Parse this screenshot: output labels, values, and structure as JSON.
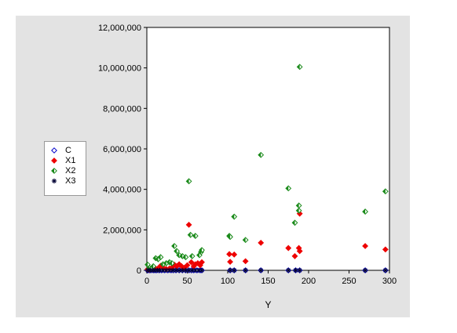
{
  "chart_data": {
    "type": "scatter",
    "xlabel": "Y",
    "ylabel": "",
    "xlim": [
      0,
      300
    ],
    "ylim": [
      0,
      12000000
    ],
    "x_ticks": [
      "0",
      "50",
      "100",
      "150",
      "200",
      "250",
      "300"
    ],
    "y_ticks": [
      "0",
      "2,000,000",
      "4,000,000",
      "6,000,000",
      "8,000,000",
      "10,000,000",
      "12,000,000"
    ],
    "grid": false,
    "legend_position": "left",
    "series": [
      {
        "name": "C",
        "marker": "open-diamond",
        "color": "#0000cc",
        "points": [
          [
            1,
            0
          ],
          [
            3,
            0
          ],
          [
            5,
            0
          ],
          [
            8,
            0
          ],
          [
            10,
            0
          ],
          [
            12,
            0
          ],
          [
            15,
            0
          ],
          [
            18,
            0
          ],
          [
            22,
            0
          ],
          [
            26,
            0
          ],
          [
            30,
            0
          ],
          [
            33,
            0
          ],
          [
            36,
            0
          ],
          [
            40,
            0
          ],
          [
            44,
            0
          ],
          [
            48,
            0
          ],
          [
            52,
            0
          ],
          [
            55,
            0
          ],
          [
            58,
            0
          ],
          [
            62,
            0
          ],
          [
            66,
            0
          ],
          [
            68,
            0
          ],
          [
            103,
            0
          ],
          [
            108,
            0
          ],
          [
            122,
            0
          ],
          [
            141,
            0
          ],
          [
            175,
            0
          ],
          [
            184,
            0
          ],
          [
            189,
            0
          ],
          [
            270,
            0
          ],
          [
            295,
            0
          ]
        ]
      },
      {
        "name": "X1",
        "marker": "filled-diamond",
        "color": "#ee0000",
        "points": [
          [
            1,
            50000
          ],
          [
            3,
            30000
          ],
          [
            5,
            80000
          ],
          [
            8,
            60000
          ],
          [
            10,
            120000
          ],
          [
            14,
            100000
          ],
          [
            17,
            220000
          ],
          [
            20,
            150000
          ],
          [
            24,
            60000
          ],
          [
            28,
            90000
          ],
          [
            31,
            130000
          ],
          [
            34,
            280000
          ],
          [
            37,
            200000
          ],
          [
            40,
            300000
          ],
          [
            43,
            200000
          ],
          [
            46,
            120000
          ],
          [
            50,
            250000
          ],
          [
            52,
            2250000
          ],
          [
            55,
            400000
          ],
          [
            58,
            200000
          ],
          [
            60,
            300000
          ],
          [
            63,
            350000
          ],
          [
            66,
            250000
          ],
          [
            68,
            400000
          ],
          [
            102,
            800000
          ],
          [
            103,
            420000
          ],
          [
            108,
            780000
          ],
          [
            122,
            450000
          ],
          [
            141,
            1360000
          ],
          [
            175,
            1100000
          ],
          [
            183,
            700000
          ],
          [
            188,
            1100000
          ],
          [
            189,
            2800000
          ],
          [
            189,
            950000
          ],
          [
            270,
            1200000
          ],
          [
            295,
            1030000
          ]
        ]
      },
      {
        "name": "X2",
        "marker": "half-diamond",
        "color": "#1a8a1a",
        "points": [
          [
            1,
            280000
          ],
          [
            3,
            120000
          ],
          [
            5,
            60000
          ],
          [
            8,
            200000
          ],
          [
            11,
            600000
          ],
          [
            14,
            550000
          ],
          [
            17,
            650000
          ],
          [
            20,
            300000
          ],
          [
            24,
            350000
          ],
          [
            28,
            400000
          ],
          [
            31,
            350000
          ],
          [
            34,
            1200000
          ],
          [
            37,
            950000
          ],
          [
            40,
            750000
          ],
          [
            44,
            700000
          ],
          [
            48,
            650000
          ],
          [
            52,
            4400000
          ],
          [
            54,
            1750000
          ],
          [
            56,
            700000
          ],
          [
            60,
            1700000
          ],
          [
            65,
            750000
          ],
          [
            67,
            900000
          ],
          [
            68,
            1000000
          ],
          [
            102,
            1700000
          ],
          [
            103,
            1650000
          ],
          [
            108,
            2650000
          ],
          [
            122,
            1500000
          ],
          [
            141,
            5700000
          ],
          [
            175,
            4050000
          ],
          [
            183,
            2350000
          ],
          [
            188,
            3200000
          ],
          [
            188,
            2950000
          ],
          [
            189,
            10050000
          ],
          [
            270,
            2900000
          ],
          [
            295,
            3900000
          ]
        ]
      },
      {
        "name": "X3",
        "marker": "star",
        "color": "#000033",
        "points": [
          [
            1,
            0
          ],
          [
            4,
            0
          ],
          [
            7,
            0
          ],
          [
            10,
            0
          ],
          [
            13,
            0
          ],
          [
            16,
            0
          ],
          [
            20,
            0
          ],
          [
            24,
            0
          ],
          [
            28,
            0
          ],
          [
            32,
            0
          ],
          [
            36,
            0
          ],
          [
            40,
            0
          ],
          [
            44,
            0
          ],
          [
            48,
            0
          ],
          [
            52,
            0
          ],
          [
            56,
            0
          ],
          [
            60,
            0
          ],
          [
            64,
            0
          ],
          [
            68,
            0
          ],
          [
            103,
            0
          ],
          [
            108,
            0
          ],
          [
            122,
            0
          ],
          [
            141,
            0
          ],
          [
            175,
            0
          ],
          [
            184,
            0
          ],
          [
            189,
            0
          ],
          [
            270,
            0
          ],
          [
            295,
            0
          ]
        ]
      }
    ]
  }
}
